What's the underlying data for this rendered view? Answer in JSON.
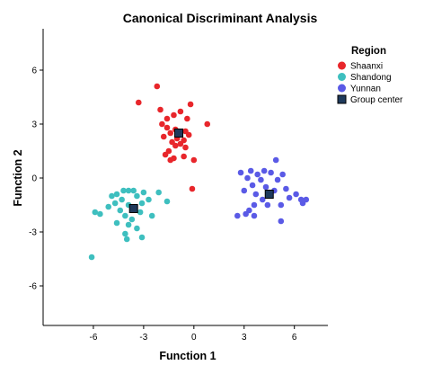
{
  "chart_data": {
    "type": "scatter",
    "title": "Canonical Discriminant Analysis",
    "xlabel": "Function 1",
    "ylabel": "Function 2",
    "xlim": [
      -9,
      8
    ],
    "ylim": [
      -8.2,
      8.3
    ],
    "xticks": [
      -6,
      -3,
      0,
      3,
      6
    ],
    "yticks": [
      6,
      3,
      0,
      -3,
      -6
    ],
    "xtick_labels": [
      "-6",
      "-3",
      "0",
      "3",
      "6"
    ],
    "ytick_labels": [
      "6",
      "3",
      "0",
      "-3",
      "-6"
    ],
    "grid": false,
    "legend": {
      "title": "Region",
      "placement": "right",
      "items": [
        {
          "label": "Shaanxi",
          "color": "#e8262b",
          "marker": "circle"
        },
        {
          "label": "Shandong",
          "color": "#3ebfbf",
          "marker": "circle"
        },
        {
          "label": "Yunnan",
          "color": "#5a5ae6",
          "marker": "circle"
        },
        {
          "label": "Group center",
          "color": "#1f3a5c",
          "marker": "square"
        }
      ]
    },
    "series": [
      {
        "name": "Shaanxi",
        "color": "#e8262b",
        "points": [
          [
            -2.2,
            5.1
          ],
          [
            -3.3,
            4.2
          ],
          [
            -0.2,
            4.1
          ],
          [
            -2.0,
            3.8
          ],
          [
            -0.8,
            3.7
          ],
          [
            -1.2,
            3.5
          ],
          [
            -1.6,
            3.3
          ],
          [
            -0.4,
            3.3
          ],
          [
            -1.9,
            3.0
          ],
          [
            -1.6,
            2.8
          ],
          [
            0.8,
            3.0
          ],
          [
            -1.1,
            2.7
          ],
          [
            -0.5,
            2.6
          ],
          [
            -1.4,
            2.5
          ],
          [
            -0.9,
            2.4
          ],
          [
            -0.3,
            2.4
          ],
          [
            -1.8,
            2.3
          ],
          [
            -1.0,
            2.2
          ],
          [
            -0.6,
            2.1
          ],
          [
            -1.3,
            2.0
          ],
          [
            -0.8,
            1.9
          ],
          [
            -1.1,
            1.8
          ],
          [
            -0.5,
            1.7
          ],
          [
            -1.5,
            1.5
          ],
          [
            -1.7,
            1.3
          ],
          [
            -1.2,
            1.1
          ],
          [
            -0.6,
            1.2
          ],
          [
            -1.4,
            1.0
          ],
          [
            0.0,
            1.0
          ],
          [
            -0.1,
            -0.6
          ]
        ]
      },
      {
        "name": "Shandong",
        "color": "#3ebfbf",
        "points": [
          [
            -4.2,
            -0.7
          ],
          [
            -3.9,
            -0.7
          ],
          [
            -4.6,
            -0.9
          ],
          [
            -3.6,
            -0.7
          ],
          [
            -3.0,
            -0.8
          ],
          [
            -2.1,
            -0.8
          ],
          [
            -4.9,
            -1.0
          ],
          [
            -3.4,
            -1.0
          ],
          [
            -4.3,
            -1.2
          ],
          [
            -2.7,
            -1.2
          ],
          [
            -3.1,
            -1.4
          ],
          [
            -4.7,
            -1.4
          ],
          [
            -3.9,
            -1.5
          ],
          [
            -1.6,
            -1.3
          ],
          [
            -5.1,
            -1.6
          ],
          [
            -3.6,
            -1.7
          ],
          [
            -4.4,
            -1.8
          ],
          [
            -3.2,
            -1.9
          ],
          [
            -5.6,
            -2.0
          ],
          [
            -4.1,
            -2.1
          ],
          [
            -2.5,
            -2.1
          ],
          [
            -5.9,
            -1.9
          ],
          [
            -3.7,
            -2.3
          ],
          [
            -4.6,
            -2.5
          ],
          [
            -3.9,
            -2.6
          ],
          [
            -3.4,
            -2.8
          ],
          [
            -4.1,
            -3.1
          ],
          [
            -3.1,
            -3.3
          ],
          [
            -4.0,
            -3.4
          ],
          [
            -6.1,
            -4.4
          ]
        ]
      },
      {
        "name": "Yunnan",
        "color": "#5a5ae6",
        "points": [
          [
            2.8,
            0.3
          ],
          [
            3.4,
            0.4
          ],
          [
            4.2,
            0.4
          ],
          [
            4.9,
            1.0
          ],
          [
            3.8,
            0.2
          ],
          [
            4.6,
            0.3
          ],
          [
            5.3,
            0.2
          ],
          [
            3.2,
            0.0
          ],
          [
            4.0,
            -0.1
          ],
          [
            5.0,
            -0.1
          ],
          [
            3.5,
            -0.4
          ],
          [
            4.3,
            -0.5
          ],
          [
            5.5,
            -0.6
          ],
          [
            3.0,
            -0.7
          ],
          [
            4.8,
            -0.7
          ],
          [
            6.1,
            -0.9
          ],
          [
            3.7,
            -0.9
          ],
          [
            5.7,
            -1.1
          ],
          [
            6.4,
            -1.2
          ],
          [
            4.1,
            -1.2
          ],
          [
            6.7,
            -1.2
          ],
          [
            3.6,
            -1.5
          ],
          [
            5.2,
            -1.5
          ],
          [
            4.4,
            -1.5
          ],
          [
            6.5,
            -1.4
          ],
          [
            3.3,
            -1.8
          ],
          [
            3.1,
            -2.0
          ],
          [
            2.6,
            -2.1
          ],
          [
            3.6,
            -2.1
          ],
          [
            5.2,
            -2.4
          ]
        ]
      }
    ],
    "group_centers": [
      {
        "group": "Shaanxi",
        "x": -0.9,
        "y": 2.5
      },
      {
        "group": "Shandong",
        "x": -3.6,
        "y": -1.7
      },
      {
        "group": "Yunnan",
        "x": 4.5,
        "y": -0.9
      }
    ],
    "center_color": "#1f3a5c"
  }
}
